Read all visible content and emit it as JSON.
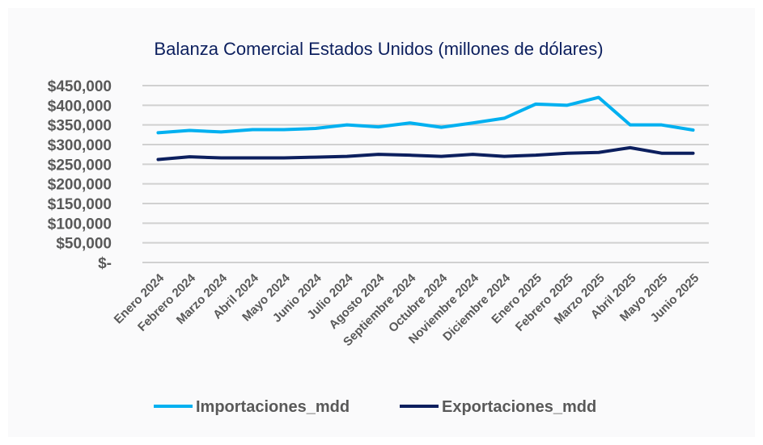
{
  "chart_data": {
    "type": "line",
    "title": "Balanza Comercial Estados Unidos  (millones de dólares)",
    "categories": [
      "Enero 2024",
      "Febrero 2024",
      "Marzo 2024",
      "Abril 2024",
      "Mayo 2024",
      "Junio 2024",
      "Julio 2024",
      "Agosto 2024",
      "Septiembre 2024",
      "Octubre 2024",
      "Noviembre 2024",
      "Diciembre 2024",
      "Enero 2025",
      "Febrero 2025",
      "Marzo 2025",
      "Abril 2025",
      "Mayo 2025",
      "Junio 2025"
    ],
    "series": [
      {
        "name": "Importaciones_mdd",
        "color": "#00b0f0",
        "values": [
          330000,
          336000,
          332000,
          338000,
          338000,
          341000,
          350000,
          345000,
          355000,
          344000,
          355000,
          367000,
          403000,
          400000,
          420000,
          350000,
          350000,
          337000
        ]
      },
      {
        "name": "Exportaciones_mdd",
        "color": "#0c1f5e",
        "values": [
          262000,
          269000,
          266000,
          266000,
          266000,
          268000,
          270000,
          275000,
          273000,
          270000,
          275000,
          270000,
          273000,
          278000,
          280000,
          292000,
          278000,
          278000
        ]
      }
    ],
    "yticks": [
      "$-",
      "$50,000",
      "$100,000",
      "$150,000",
      "$200,000",
      "$250,000",
      "$300,000",
      "$350,000",
      "$400,000",
      "$450,000"
    ],
    "ylim": [
      0,
      450000
    ],
    "grid": true,
    "legend": "bottom"
  }
}
